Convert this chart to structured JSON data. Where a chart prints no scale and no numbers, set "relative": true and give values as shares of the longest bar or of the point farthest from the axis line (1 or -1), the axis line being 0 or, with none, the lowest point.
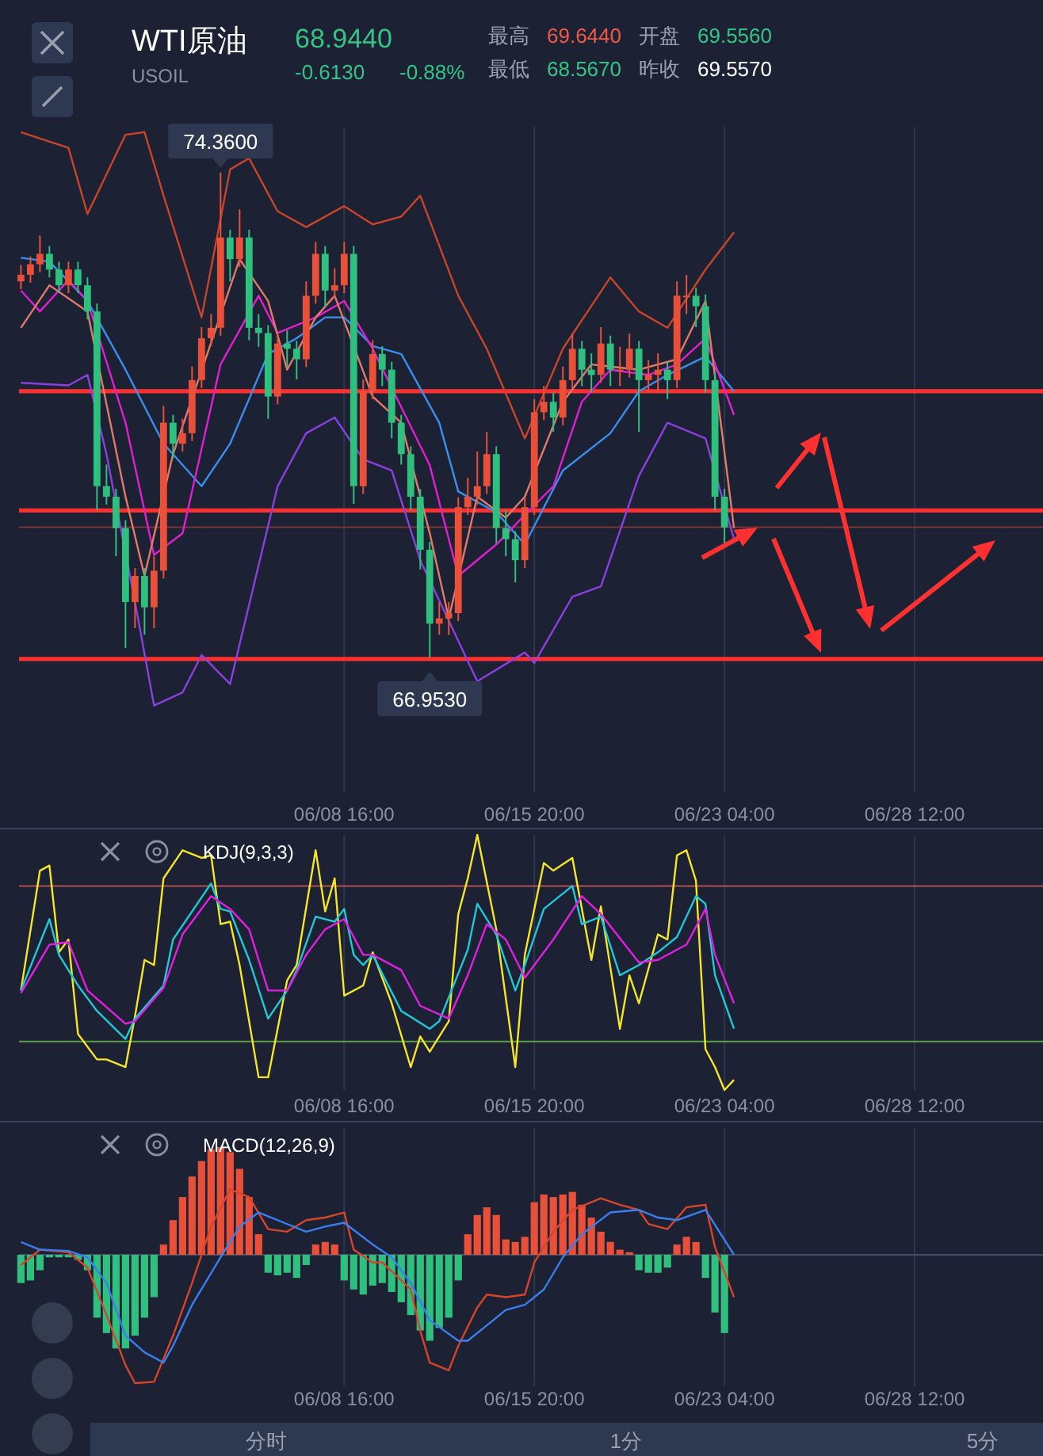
{
  "chart_data": [
    {
      "type": "other",
      "title": "WTI原油",
      "subtitle": "USOIL",
      "annotations": [
        "68.9440",
        "-0.6130",
        "-0.88%",
        "最高",
        "69.6440",
        "开盘",
        "69.5560",
        "最低",
        "68.5670",
        "昨收",
        "69.5570"
      ]
    },
    {
      "type": "candlestick",
      "grid": "x",
      "categories": [
        null,
        null,
        null,
        null,
        null,
        null,
        null,
        null,
        null,
        null,
        null,
        null,
        null,
        null,
        null,
        null,
        null,
        null,
        null,
        null,
        null,
        null,
        null,
        null,
        null,
        null,
        null,
        null,
        null,
        null,
        null,
        null,
        null,
        null,
        "06/08 16:00",
        null,
        null,
        null,
        null,
        null,
        null,
        null,
        null,
        null,
        null,
        null,
        null,
        null,
        null,
        null,
        null,
        null,
        null,
        null,
        "06/15 20:00",
        null,
        null,
        null,
        null,
        null,
        null,
        null,
        null,
        null,
        null,
        null,
        null,
        null,
        null,
        null,
        null,
        null,
        null,
        null,
        "06/23 04:00",
        null,
        null,
        null,
        null,
        null,
        null,
        null,
        null,
        null,
        null,
        null,
        null,
        null,
        null,
        null,
        null,
        null,
        null,
        null,
        "06/28 12:00",
        null,
        null,
        null,
        null,
        null,
        null,
        null,
        null,
        null,
        null,
        null,
        null,
        null
      ],
      "ohlc": [
        [
          72.7,
          72.95,
          72.58,
          72.8
        ],
        [
          72.8,
          73.08,
          72.68,
          72.96
        ],
        [
          72.96,
          73.4,
          72.84,
          73.12
        ],
        [
          73.12,
          73.24,
          72.76,
          72.88
        ],
        [
          72.88,
          73.0,
          72.52,
          72.64
        ],
        [
          72.64,
          73.0,
          72.52,
          72.88
        ],
        [
          72.88,
          73.0,
          72.52,
          72.64
        ],
        [
          72.64,
          72.76,
          72.12,
          72.24
        ],
        [
          72.24,
          72.36,
          69.2,
          69.57
        ],
        [
          69.57,
          69.9,
          69.29,
          69.41
        ],
        [
          69.41,
          69.53,
          68.5,
          68.93
        ],
        [
          68.93,
          69.05,
          67.1,
          67.8
        ],
        [
          67.8,
          68.32,
          67.4,
          68.2
        ],
        [
          68.2,
          68.32,
          67.3,
          67.72
        ],
        [
          67.72,
          68.5,
          67.4,
          68.28
        ],
        [
          68.28,
          70.8,
          68.16,
          70.54
        ],
        [
          70.54,
          70.66,
          70.0,
          70.22
        ],
        [
          70.22,
          70.6,
          70.1,
          70.38
        ],
        [
          70.38,
          71.4,
          70.26,
          71.19
        ],
        [
          71.19,
          72.0,
          71.07,
          71.83
        ],
        [
          71.83,
          72.2,
          71.71,
          71.99
        ],
        [
          71.99,
          74.36,
          71.87,
          73.37
        ],
        [
          73.37,
          73.49,
          72.7,
          73.04
        ],
        [
          73.04,
          73.8,
          72.92,
          73.37
        ],
        [
          73.37,
          73.49,
          71.8,
          71.99
        ],
        [
          71.99,
          72.2,
          71.7,
          71.91
        ],
        [
          71.91,
          72.03,
          70.6,
          70.94
        ],
        [
          70.94,
          71.9,
          70.82,
          71.75
        ],
        [
          71.75,
          71.95,
          71.4,
          71.67
        ],
        [
          71.67,
          71.79,
          71.2,
          71.51
        ],
        [
          71.51,
          72.7,
          71.39,
          72.48
        ],
        [
          72.48,
          73.3,
          72.36,
          73.12
        ],
        [
          73.12,
          73.24,
          72.3,
          72.56
        ],
        [
          72.56,
          72.9,
          72.44,
          72.64
        ],
        [
          72.64,
          73.3,
          72.52,
          73.12
        ],
        [
          73.12,
          73.24,
          69.3,
          69.57
        ],
        [
          69.57,
          71.2,
          69.45,
          71.02
        ],
        [
          71.02,
          71.8,
          70.9,
          71.59
        ],
        [
          71.59,
          71.71,
          71.1,
          71.35
        ],
        [
          71.35,
          71.47,
          70.3,
          70.54
        ],
        [
          70.54,
          70.66,
          69.9,
          70.06
        ],
        [
          70.06,
          70.18,
          69.2,
          69.41
        ],
        [
          69.41,
          69.53,
          68.3,
          68.6
        ],
        [
          68.6,
          68.72,
          66.953,
          67.47
        ],
        [
          67.47,
          67.8,
          67.3,
          67.55
        ],
        [
          67.55,
          67.8,
          67.3,
          67.63
        ],
        [
          67.63,
          69.4,
          67.51,
          69.25
        ],
        [
          69.25,
          69.7,
          69.13,
          69.41
        ],
        [
          69.41,
          70.1,
          69.29,
          69.57
        ],
        [
          69.57,
          70.4,
          69.45,
          70.06
        ],
        [
          70.06,
          70.18,
          68.7,
          68.93
        ],
        [
          68.93,
          69.2,
          68.5,
          68.76
        ],
        [
          68.76,
          68.88,
          68.1,
          68.44
        ],
        [
          68.44,
          69.4,
          68.32,
          69.25
        ],
        [
          69.25,
          70.9,
          69.13,
          70.7
        ],
        [
          70.7,
          71.1,
          70.58,
          70.86
        ],
        [
          70.86,
          71.0,
          70.4,
          70.62
        ],
        [
          70.62,
          71.4,
          70.5,
          71.19
        ],
        [
          71.19,
          71.9,
          71.07,
          71.67
        ],
        [
          71.67,
          71.79,
          71.1,
          71.35
        ],
        [
          71.35,
          71.6,
          71.0,
          71.27
        ],
        [
          71.27,
          72.0,
          71.15,
          71.75
        ],
        [
          71.75,
          71.87,
          71.1,
          71.35
        ],
        [
          71.35,
          71.7,
          71.1,
          71.35
        ],
        [
          71.35,
          71.9,
          71.23,
          71.67
        ],
        [
          71.67,
          71.79,
          70.4,
          71.19
        ],
        [
          71.19,
          71.5,
          71.0,
          71.27
        ],
        [
          71.27,
          71.6,
          71.0,
          71.35
        ],
        [
          71.35,
          71.47,
          70.9,
          71.19
        ],
        [
          71.19,
          72.7,
          71.07,
          72.48
        ],
        [
          72.48,
          72.8,
          72.2,
          72.48
        ],
        [
          72.48,
          72.6,
          72.0,
          72.32
        ],
        [
          72.32,
          72.5,
          71.0,
          71.19
        ],
        [
          71.19,
          71.31,
          69.2,
          69.41
        ],
        [
          69.41,
          69.53,
          68.7,
          68.94
        ],
        null,
        null,
        null,
        null,
        null,
        null,
        null,
        null,
        null,
        null,
        null,
        null,
        null,
        null,
        null,
        null,
        null,
        null,
        null,
        null,
        null,
        null,
        null,
        null,
        null,
        null,
        null,
        null,
        null,
        null,
        null,
        null,
        null
      ],
      "series": [
        {
          "type": "line",
          "color": "#c8442a",
          "values": [
            74.98,
            null,
            null,
            null,
            null,
            74.74,
            null,
            73.73,
            null,
            null,
            null,
            74.94,
            null,
            74.98,
            null,
            74.01,
            null,
            null,
            null,
            72.15,
            null,
            null,
            74.41,
            null,
            74.58,
            null,
            null,
            73.77,
            null,
            null,
            73.53,
            null,
            null,
            null,
            73.85,
            null,
            null,
            73.57,
            null,
            null,
            73.69,
            null,
            74.01,
            null,
            null,
            null,
            72.48,
            null,
            null,
            71.67,
            null,
            null,
            null,
            70.3,
            null,
            null,
            null,
            71.67,
            null,
            null,
            null,
            null,
            72.76,
            null,
            null,
            72.24,
            null,
            null,
            71.99,
            null,
            null,
            null,
            72.88,
            null,
            null,
            73.45,
            null,
            null,
            null,
            null,
            null,
            null,
            null,
            null,
            null,
            null,
            null,
            null,
            null,
            null,
            null,
            null,
            null,
            null,
            null,
            null,
            null,
            null,
            null,
            null,
            null,
            null,
            null,
            null,
            null,
            null,
            null,
            null
          ]
        },
        {
          "type": "line",
          "color": "#8a40e0",
          "values": [
            71.15,
            null,
            null,
            null,
            null,
            71.11,
            null,
            71.27,
            null,
            70.06,
            null,
            null,
            67.8,
            null,
            66.22,
            null,
            null,
            66.42,
            null,
            66.99,
            null,
            null,
            66.55,
            null,
            null,
            null,
            null,
            69.57,
            null,
            null,
            70.38,
            null,
            null,
            70.62,
            null,
            null,
            69.98,
            null,
            null,
            69.81,
            null,
            null,
            68.44,
            null,
            null,
            null,
            null,
            null,
            66.59,
            null,
            null,
            null,
            null,
            67.03,
            66.87,
            null,
            null,
            null,
            67.88,
            null,
            null,
            68.04,
            null,
            null,
            null,
            69.73,
            null,
            null,
            70.54,
            null,
            null,
            null,
            70.3,
            null,
            null,
            68.76,
            null,
            null,
            null,
            null,
            null,
            null,
            null,
            null,
            null,
            null,
            null,
            null,
            null,
            null,
            null,
            null,
            null,
            null,
            null,
            null,
            null,
            null,
            null,
            null,
            null,
            null,
            null,
            null,
            null,
            null,
            null,
            null
          ]
        },
        {
          "type": "line",
          "color": "#3b8ef0",
          "values": [
            73.06,
            null,
            null,
            73.0,
            null,
            null,
            null,
            72.4,
            null,
            null,
            null,
            71.35,
            null,
            null,
            null,
            70.22,
            null,
            null,
            null,
            69.57,
            null,
            null,
            70.22,
            null,
            null,
            null,
            71.59,
            null,
            null,
            71.83,
            null,
            null,
            72.15,
            null,
            72.15,
            null,
            null,
            71.71,
            null,
            null,
            71.59,
            null,
            null,
            null,
            70.54,
            null,
            69.49,
            null,
            null,
            null,
            69.17,
            null,
            null,
            68.68,
            null,
            null,
            null,
            69.81,
            null,
            null,
            null,
            null,
            70.38,
            null,
            null,
            71.02,
            null,
            null,
            71.27,
            null,
            null,
            null,
            71.55,
            null,
            null,
            71.02,
            null,
            null,
            null,
            null,
            null,
            null,
            null,
            null,
            null,
            null,
            null,
            null,
            null,
            null,
            null,
            null,
            null,
            null,
            null,
            null,
            null,
            null,
            null,
            null,
            null,
            null,
            null,
            null,
            null,
            null,
            null,
            null
          ]
        },
        {
          "type": "line",
          "color": "#e020d0",
          "values": [
            72.56,
            null,
            72.24,
            null,
            null,
            72.72,
            null,
            72.4,
            null,
            null,
            null,
            70.54,
            null,
            null,
            68.52,
            null,
            null,
            68.85,
            null,
            null,
            null,
            71.43,
            null,
            null,
            null,
            72.48,
            null,
            71.91,
            null,
            null,
            null,
            72.15,
            null,
            null,
            72.4,
            null,
            null,
            71.67,
            null,
            null,
            70.78,
            null,
            null,
            69.89,
            null,
            null,
            68.2,
            null,
            null,
            null,
            68.68,
            null,
            null,
            69.13,
            null,
            null,
            69.57,
            null,
            null,
            70.86,
            null,
            null,
            71.35,
            null,
            null,
            null,
            71.27,
            null,
            null,
            71.43,
            null,
            null,
            71.83,
            null,
            null,
            70.66,
            null,
            null,
            null,
            null,
            null,
            null,
            null,
            null,
            null,
            null,
            null,
            null,
            null,
            null,
            null,
            null,
            null,
            null,
            null,
            null,
            null,
            null,
            null,
            null,
            null,
            null,
            null,
            null,
            null,
            null,
            null,
            null
          ]
        },
        {
          "type": "line",
          "color": "#e07a6a",
          "values": [
            71.99,
            null,
            null,
            72.64,
            null,
            null,
            null,
            72.24,
            null,
            null,
            null,
            69.41,
            null,
            68.2,
            null,
            null,
            70.06,
            null,
            null,
            null,
            null,
            null,
            null,
            73.04,
            null,
            null,
            72.4,
            null,
            71.35,
            null,
            null,
            72.15,
            null,
            72.48,
            null,
            null,
            null,
            70.94,
            null,
            null,
            70.54,
            null,
            null,
            68.85,
            null,
            67.55,
            null,
            null,
            69.41,
            null,
            null,
            69.09,
            null,
            69.41,
            null,
            null,
            null,
            70.86,
            null,
            null,
            71.43,
            null,
            null,
            null,
            null,
            71.35,
            null,
            null,
            null,
            71.51,
            null,
            null,
            72.4,
            null,
            null,
            68.93,
            null,
            null,
            null,
            null,
            null,
            null,
            null,
            null,
            null,
            null,
            null,
            null,
            null,
            null,
            null,
            null,
            null,
            null,
            null,
            null,
            null,
            null,
            null,
            null,
            null,
            null,
            null,
            null,
            null,
            null,
            null,
            null
          ]
        }
      ],
      "ref_lines": [
        {
          "axis": "y",
          "value": 68.944,
          "color": "#7a3434"
        },
        {
          "axis": "y",
          "value": 66.93,
          "color": "#ff3030"
        },
        {
          "axis": "y",
          "value": 71.02,
          "color": "#ff3030"
        },
        {
          "axis": "y",
          "value": 69.2,
          "color": "#ff3030"
        }
      ],
      "annotations": [
        {
          "text": "74.3600",
          "y": 74.36
        },
        {
          "text": "66.9530",
          "y": 66.953
        }
      ]
    },
    {
      "type": "line",
      "title": "KDJ(9,3,3)",
      "relative": true,
      "grid": "x",
      "categories": [
        null,
        null,
        null,
        null,
        null,
        null,
        null,
        null,
        null,
        null,
        null,
        null,
        null,
        null,
        null,
        null,
        null,
        null,
        null,
        null,
        null,
        null,
        null,
        null,
        null,
        null,
        null,
        null,
        null,
        null,
        null,
        null,
        null,
        null,
        "06/08 16:00",
        null,
        null,
        null,
        null,
        null,
        null,
        null,
        null,
        null,
        null,
        null,
        null,
        null,
        null,
        null,
        null,
        null,
        null,
        null,
        "06/15 20:00",
        null,
        null,
        null,
        null,
        null,
        null,
        null,
        null,
        null,
        null,
        null,
        null,
        null,
        null,
        null,
        null,
        null,
        null,
        null,
        "06/23 04:00",
        null,
        null,
        null,
        null,
        null,
        null,
        null,
        null,
        null,
        null,
        null,
        null,
        null,
        null,
        null,
        null,
        null,
        null,
        null,
        "06/28 12:00",
        null,
        null,
        null,
        null,
        null,
        null,
        null,
        null,
        null,
        null,
        null,
        null,
        null
      ],
      "series": [
        {
          "color": "#f5e62a",
          "values": [
            0.39,
            null,
            0.86,
            0.88,
            0.54,
            0.59,
            0.22,
            null,
            0.12,
            0.12,
            null,
            0.09,
            0.29,
            0.51,
            0.49,
            0.83,
            null,
            0.94,
            null,
            0.91,
            0.92,
            0.65,
            0.66,
            0.49,
            null,
            0.05,
            0.05,
            null,
            0.43,
            0.49,
            null,
            0.94,
            0.7,
            0.83,
            0.37,
            null,
            0.41,
            0.54,
            null,
            0.34,
            null,
            0.09,
            0.21,
            0.15,
            null,
            0.27,
            0.69,
            0.83,
            1,
            null,
            0.63,
            null,
            0.09,
            0.53,
            null,
            0.89,
            0.86,
            null,
            0.91,
            null,
            0.51,
            0.72,
            null,
            0.24,
            0.45,
            0.34,
            null,
            0.61,
            0.59,
            0.92,
            0.94,
            0.82,
            0.16,
            0.09,
            0,
            0.04,
            null,
            null,
            null,
            null,
            null,
            null,
            null,
            null,
            null,
            null,
            null,
            null,
            null,
            null,
            null,
            null,
            null,
            null,
            null,
            null,
            null,
            null,
            null,
            null,
            null,
            null,
            null,
            null,
            null,
            null,
            null,
            null
          ]
        },
        {
          "color": "#20c8d8",
          "values": [
            0.39,
            null,
            null,
            0.67,
            0.53,
            null,
            0.41,
            null,
            0.31,
            null,
            null,
            0.2,
            0.28,
            null,
            null,
            0.41,
            0.59,
            null,
            null,
            null,
            0.81,
            0.71,
            0.7,
            null,
            0.51,
            null,
            0.28,
            null,
            0.39,
            0.47,
            null,
            0.68,
            null,
            0.66,
            0.71,
            0.53,
            0.49,
            0.53,
            null,
            null,
            0.31,
            null,
            null,
            0.24,
            0.27,
            null,
            null,
            0.55,
            0.73,
            null,
            0.61,
            null,
            0.39,
            0.49,
            null,
            0.71,
            null,
            null,
            0.8,
            0.65,
            null,
            0.68,
            null,
            0.45,
            null,
            0.49,
            null,
            0.54,
            null,
            0.6,
            null,
            0.76,
            0.73,
            0.45,
            null,
            0.24,
            null,
            null,
            null,
            null,
            null,
            null,
            null,
            null,
            null,
            null,
            null,
            null,
            null,
            null,
            null,
            null,
            null,
            null,
            null,
            null,
            null,
            null,
            null,
            null,
            null,
            null,
            null,
            null,
            null,
            null,
            null,
            null
          ]
        },
        {
          "color": "#e020e0",
          "values": [
            0.38,
            null,
            null,
            0.57,
            null,
            0.58,
            null,
            0.39,
            null,
            null,
            null,
            0.26,
            0.27,
            null,
            null,
            0.4,
            null,
            0.61,
            null,
            null,
            0.76,
            null,
            0.71,
            null,
            0.63,
            null,
            0.39,
            null,
            0.39,
            null,
            0.53,
            null,
            0.63,
            null,
            0.67,
            null,
            0.53,
            0.53,
            null,
            null,
            0.47,
            null,
            0.33,
            null,
            null,
            0.28,
            null,
            0.45,
            null,
            0.65,
            null,
            0.59,
            null,
            0.44,
            null,
            null,
            0.59,
            null,
            null,
            0.76,
            null,
            0.69,
            null,
            null,
            null,
            0.5,
            null,
            0.51,
            null,
            null,
            0.57,
            null,
            0.71,
            0.53,
            null,
            0.34,
            null,
            null,
            null,
            null,
            null,
            null,
            null,
            null,
            null,
            null,
            null,
            null,
            null,
            null,
            null,
            null,
            null,
            null,
            null,
            null,
            null,
            null,
            null,
            null,
            null,
            null,
            null,
            null,
            null,
            null,
            null,
            null
          ]
        }
      ],
      "ref_lines": [
        {
          "axis": "y",
          "value": 0.8,
          "color": "#b05050"
        },
        {
          "axis": "y",
          "value": 0.19,
          "color": "#5aa040"
        }
      ]
    },
    {
      "type": "bar",
      "title": "MACD(12,26,9)",
      "relative": true,
      "grid": "x",
      "categories": [
        null,
        null,
        null,
        null,
        null,
        null,
        null,
        null,
        null,
        null,
        null,
        null,
        null,
        null,
        null,
        null,
        null,
        null,
        null,
        null,
        null,
        null,
        null,
        null,
        null,
        null,
        null,
        null,
        null,
        null,
        null,
        null,
        null,
        null,
        "06/08 16:00",
        null,
        null,
        null,
        null,
        null,
        null,
        null,
        null,
        null,
        null,
        null,
        null,
        null,
        null,
        null,
        null,
        null,
        null,
        null,
        "06/15 20:00",
        null,
        null,
        null,
        null,
        null,
        null,
        null,
        null,
        null,
        null,
        null,
        null,
        null,
        null,
        null,
        null,
        null,
        null,
        null,
        "06/23 04:00",
        null,
        null,
        null,
        null,
        null,
        null,
        null,
        null,
        null,
        null,
        null,
        null,
        null,
        null,
        null,
        null,
        null,
        null,
        null,
        "06/28 12:00",
        null,
        null,
        null,
        null,
        null,
        null,
        null,
        null,
        null,
        null,
        null,
        null,
        null
      ],
      "series": [
        {
          "values": [
            -0.22,
            -0.2,
            -0.12,
            -0.02,
            -0.02,
            -0.02,
            -0.04,
            -0.12,
            -0.49,
            -0.61,
            -0.73,
            -0.73,
            -0.63,
            -0.49,
            -0.33,
            0.08,
            0.27,
            0.45,
            0.61,
            0.73,
            0.82,
            0.84,
            0.8,
            0.67,
            0.45,
            0.16,
            -0.14,
            -0.16,
            -0.14,
            -0.18,
            -0.08,
            0.08,
            0.1,
            0.08,
            -0.2,
            -0.27,
            -0.31,
            -0.24,
            -0.22,
            -0.29,
            -0.37,
            -0.47,
            -0.59,
            -0.67,
            -0.57,
            -0.49,
            -0.2,
            0.16,
            0.31,
            0.37,
            0.31,
            0.12,
            0.1,
            0.14,
            0.41,
            0.47,
            0.45,
            0.47,
            0.49,
            0.39,
            0.29,
            0.18,
            0.1,
            0.04,
            0.02,
            -0.12,
            -0.14,
            -0.14,
            -0.1,
            0.08,
            0.14,
            0.1,
            -0.18,
            -0.45,
            -0.61,
            null,
            null,
            null,
            null,
            null,
            null,
            null,
            null,
            null,
            null,
            null,
            null,
            null,
            null,
            null,
            null,
            null,
            null,
            null,
            null,
            null,
            null,
            null,
            null,
            null,
            null,
            null,
            null,
            null,
            null,
            null,
            null,
            null
          ],
          "colors": [
            "#2fbf7f",
            "#2fbf7f",
            "#2fbf7f",
            "#2fbf7f",
            "#2fbf7f",
            "#2fbf7f",
            "#2fbf7f",
            "#2fbf7f",
            "#2fbf7f",
            "#2fbf7f",
            "#2fbf7f",
            "#2fbf7f",
            "#2fbf7f",
            "#2fbf7f",
            "#2fbf7f",
            "#e8503a",
            "#e8503a",
            "#e8503a",
            "#e8503a",
            "#e8503a",
            "#e8503a",
            "#e8503a",
            "#e8503a",
            "#e8503a",
            "#e8503a",
            "#e8503a",
            "#2fbf7f",
            "#2fbf7f",
            "#2fbf7f",
            "#2fbf7f",
            "#2fbf7f",
            "#e8503a",
            "#e8503a",
            "#e8503a",
            "#2fbf7f",
            "#2fbf7f",
            "#2fbf7f",
            "#2fbf7f",
            "#2fbf7f",
            "#2fbf7f",
            "#2fbf7f",
            "#2fbf7f",
            "#2fbf7f",
            "#2fbf7f",
            "#2fbf7f",
            "#2fbf7f",
            "#2fbf7f",
            "#e8503a",
            "#e8503a",
            "#e8503a",
            "#e8503a",
            "#e8503a",
            "#e8503a",
            "#e8503a",
            "#e8503a",
            "#e8503a",
            "#e8503a",
            "#e8503a",
            "#e8503a",
            "#e8503a",
            "#e8503a",
            "#e8503a",
            "#e8503a",
            "#e8503a",
            "#e8503a",
            "#2fbf7f",
            "#2fbf7f",
            "#2fbf7f",
            "#2fbf7f",
            "#e8503a",
            "#e8503a",
            "#e8503a",
            "#2fbf7f",
            "#2fbf7f",
            "#2fbf7f",
            null,
            null,
            null,
            null,
            null,
            null,
            null,
            null,
            null,
            null,
            null,
            null,
            null,
            null,
            null,
            null,
            null,
            null,
            null,
            null,
            null,
            null,
            null,
            null,
            null,
            null,
            null,
            null,
            null,
            null,
            null,
            null,
            null
          ]
        },
        {
          "type": "line",
          "color": "#d8442a",
          "values": [
            -0.08,
            null,
            0.04,
            null,
            null,
            0.02,
            null,
            -0.1,
            null,
            -0.47,
            null,
            -0.86,
            -1,
            null,
            -0.99,
            null,
            -0.63,
            null,
            -0.22,
            null,
            0.22,
            null,
            0.51,
            null,
            0.45,
            null,
            0.2,
            null,
            0.18,
            null,
            0.27,
            null,
            0.29,
            null,
            0.33,
            0.04,
            null,
            -0.06,
            -0.06,
            null,
            null,
            -0.27,
            -0.59,
            -0.84,
            null,
            -0.9,
            -0.71,
            null,
            -0.41,
            -0.31,
            null,
            -0.33,
            null,
            -0.31,
            -0.06,
            null,
            0.18,
            null,
            0.35,
            null,
            0.41,
            0.44,
            null,
            0.39,
            null,
            0.35,
            0.24,
            null,
            0.2,
            null,
            0.37,
            null,
            0.39,
            0.06,
            null,
            -0.33,
            null,
            null,
            null,
            null,
            null,
            null,
            null,
            null,
            null,
            null,
            null,
            null,
            null,
            null,
            null,
            null,
            null,
            null,
            null,
            null,
            null,
            null,
            null,
            null,
            null,
            null,
            null,
            null,
            null,
            null,
            null,
            null
          ]
        },
        {
          "type": "line",
          "color": "#3b7ef0",
          "values": [
            0.1,
            null,
            0.04,
            null,
            null,
            0.03,
            null,
            -0.02,
            null,
            -0.22,
            null,
            -0.63,
            null,
            -0.76,
            null,
            -0.84,
            -0.71,
            null,
            -0.39,
            null,
            null,
            -0.02,
            null,
            0.22,
            null,
            0.33,
            null,
            0.27,
            null,
            null,
            0.18,
            null,
            0.22,
            null,
            0.25,
            null,
            null,
            0.08,
            null,
            -0.02,
            null,
            -0.22,
            null,
            -0.51,
            null,
            null,
            -0.67,
            -0.67,
            null,
            -0.55,
            null,
            -0.43,
            null,
            -0.39,
            null,
            -0.27,
            null,
            -0.02,
            null,
            0.16,
            null,
            null,
            0.33,
            null,
            null,
            0.35,
            null,
            0.29,
            null,
            0.27,
            null,
            null,
            0.35,
            null,
            null,
            0,
            null,
            null,
            null,
            null,
            null,
            null,
            null,
            null,
            null,
            null,
            null,
            null,
            null,
            null,
            null,
            null,
            null,
            null,
            null,
            null,
            null,
            null,
            null,
            null,
            null,
            null,
            null,
            null,
            null,
            null,
            null,
            null
          ]
        }
      ]
    },
    {
      "type": "other",
      "annotations": [
        "分时",
        "1分",
        "5分"
      ]
    }
  ]
}
